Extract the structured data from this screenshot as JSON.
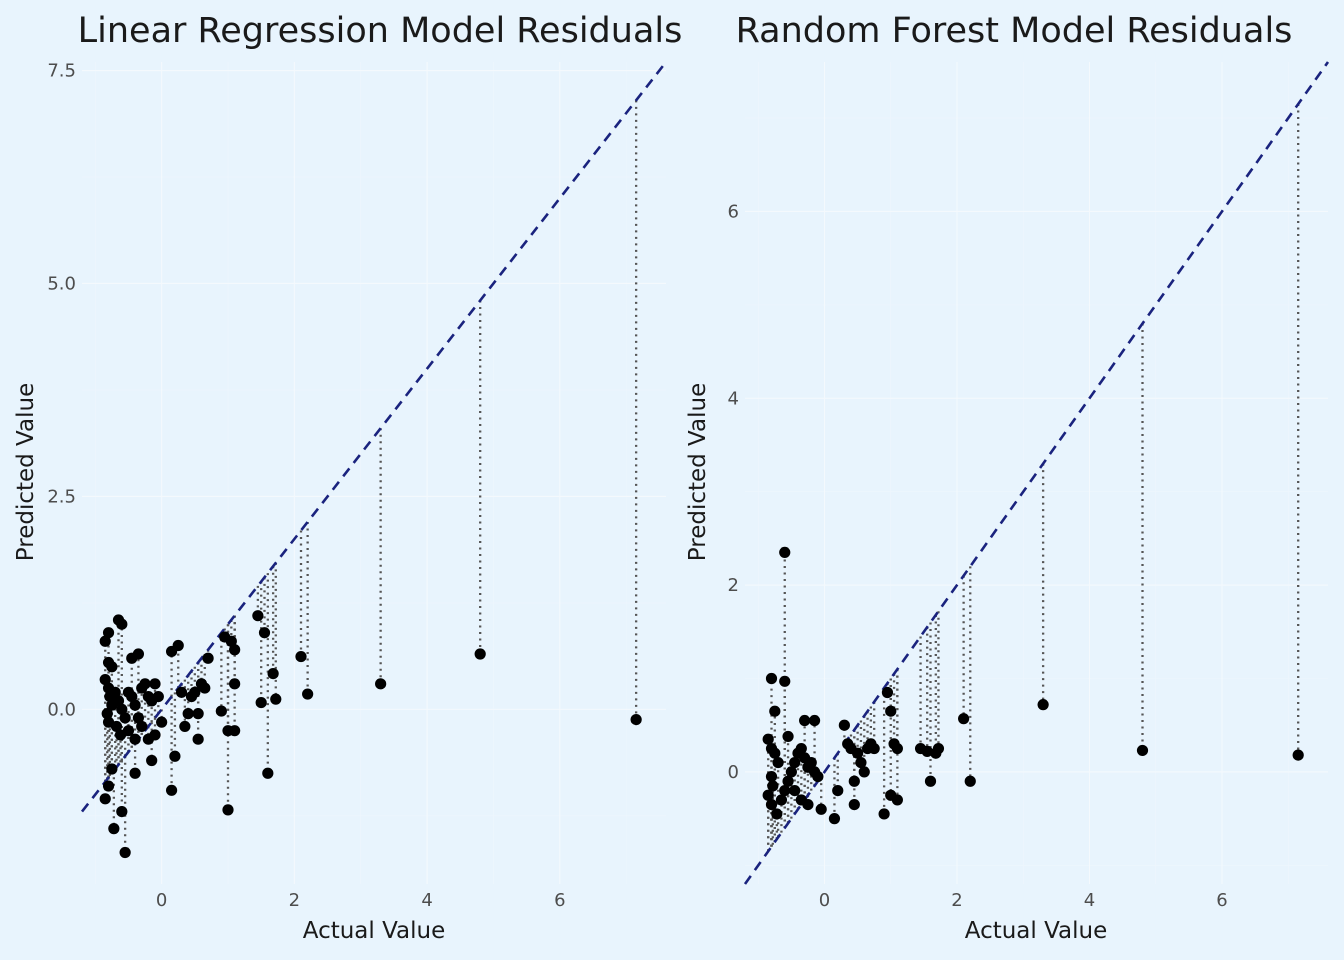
{
  "chart_data": [
    {
      "type": "scatter",
      "title": "Linear Regression Model Residuals",
      "xlabel": "Actual Value",
      "ylabel": "Predicted Value",
      "xlim": [
        -1.2,
        7.6
      ],
      "ylim": [
        -2.05,
        7.6
      ],
      "x_ticks": [
        0,
        2,
        4,
        6
      ],
      "y_ticks": [
        0.0,
        2.5,
        5.0,
        7.5
      ],
      "x_tick_labels": [
        "0",
        "2",
        "4",
        "6"
      ],
      "y_tick_labels": [
        "0.0",
        "2.5",
        "5.0",
        "7.5"
      ],
      "reference_line": "y = x",
      "grid": true,
      "points": [
        [
          -0.85,
          0.8
        ],
        [
          -0.8,
          0.9
        ],
        [
          -0.8,
          0.55
        ],
        [
          -0.75,
          0.5
        ],
        [
          -0.65,
          1.05
        ],
        [
          -0.6,
          1.0
        ],
        [
          -0.85,
          0.35
        ],
        [
          -0.8,
          0.25
        ],
        [
          -0.78,
          0.15
        ],
        [
          -0.75,
          0.05
        ],
        [
          -0.82,
          -0.05
        ],
        [
          -0.8,
          -0.15
        ],
        [
          -0.7,
          0.2
        ],
        [
          -0.65,
          0.1
        ],
        [
          -0.6,
          0.0
        ],
        [
          -0.55,
          -0.1
        ],
        [
          -0.68,
          -0.2
        ],
        [
          -0.62,
          -0.3
        ],
        [
          -0.5,
          0.2
        ],
        [
          -0.45,
          0.15
        ],
        [
          -0.4,
          0.05
        ],
        [
          -0.35,
          -0.1
        ],
        [
          -0.3,
          0.25
        ],
        [
          -0.25,
          0.3
        ],
        [
          -0.2,
          0.15
        ],
        [
          -0.15,
          0.1
        ],
        [
          -0.1,
          0.3
        ],
        [
          -0.05,
          0.15
        ],
        [
          -0.45,
          0.6
        ],
        [
          -0.35,
          0.65
        ],
        [
          -0.5,
          -0.25
        ],
        [
          -0.4,
          -0.35
        ],
        [
          -0.3,
          -0.2
        ],
        [
          -0.2,
          -0.35
        ],
        [
          -0.1,
          -0.3
        ],
        [
          0.0,
          -0.15
        ],
        [
          -0.85,
          -1.05
        ],
        [
          -0.8,
          -0.9
        ],
        [
          -0.75,
          -0.7
        ],
        [
          -0.72,
          -1.4
        ],
        [
          -0.6,
          -1.2
        ],
        [
          -0.55,
          -1.68
        ],
        [
          -0.4,
          -0.75
        ],
        [
          -0.15,
          -0.6
        ],
        [
          0.15,
          -0.95
        ],
        [
          0.2,
          -0.55
        ],
        [
          0.15,
          0.68
        ],
        [
          0.25,
          0.75
        ],
        [
          0.3,
          0.2
        ],
        [
          0.35,
          -0.2
        ],
        [
          0.4,
          -0.05
        ],
        [
          0.45,
          0.15
        ],
        [
          0.5,
          0.2
        ],
        [
          0.55,
          -0.35
        ],
        [
          0.6,
          0.3
        ],
        [
          0.65,
          0.25
        ],
        [
          0.7,
          0.6
        ],
        [
          0.55,
          -0.05
        ],
        [
          0.9,
          -0.02
        ],
        [
          0.95,
          0.85
        ],
        [
          1.05,
          0.8
        ],
        [
          1.1,
          0.7
        ],
        [
          1.0,
          -0.25
        ],
        [
          1.1,
          -0.25
        ],
        [
          1.1,
          0.3
        ],
        [
          1.0,
          -1.18
        ],
        [
          1.45,
          1.1
        ],
        [
          1.5,
          0.08
        ],
        [
          1.55,
          0.9
        ],
        [
          1.6,
          -0.75
        ],
        [
          1.68,
          0.42
        ],
        [
          1.72,
          0.12
        ],
        [
          2.1,
          0.62
        ],
        [
          2.2,
          0.18
        ],
        [
          3.3,
          0.3
        ],
        [
          4.8,
          0.65
        ],
        [
          7.15,
          -0.12
        ]
      ]
    },
    {
      "type": "scatter",
      "title": "Random Forest Model Residuals",
      "xlabel": "Actual Value",
      "ylabel": "Predicted Value",
      "xlim": [
        -1.2,
        7.6
      ],
      "ylim": [
        -1.2,
        7.6
      ],
      "x_ticks": [
        0,
        2,
        4,
        6
      ],
      "y_ticks": [
        0,
        2,
        4,
        6
      ],
      "x_tick_labels": [
        "0",
        "2",
        "4",
        "6"
      ],
      "y_tick_labels": [
        "0",
        "2",
        "4",
        "6"
      ],
      "reference_line": "y = x",
      "grid": true,
      "points": [
        [
          -0.8,
          1.0
        ],
        [
          -0.75,
          0.65
        ],
        [
          -0.6,
          2.35
        ],
        [
          -0.6,
          0.97
        ],
        [
          -0.85,
          0.35
        ],
        [
          -0.8,
          0.25
        ],
        [
          -0.75,
          0.2
        ],
        [
          -0.7,
          0.1
        ],
        [
          -0.8,
          -0.05
        ],
        [
          -0.78,
          -0.15
        ],
        [
          -0.85,
          -0.25
        ],
        [
          -0.8,
          -0.35
        ],
        [
          -0.72,
          -0.45
        ],
        [
          -0.65,
          -0.3
        ],
        [
          -0.6,
          -0.2
        ],
        [
          -0.55,
          -0.1
        ],
        [
          -0.5,
          0.0
        ],
        [
          -0.45,
          0.1
        ],
        [
          -0.4,
          0.2
        ],
        [
          -0.35,
          0.25
        ],
        [
          -0.3,
          0.15
        ],
        [
          -0.25,
          0.05
        ],
        [
          -0.2,
          0.1
        ],
        [
          -0.15,
          0.0
        ],
        [
          -0.1,
          -0.05
        ],
        [
          -0.3,
          0.55
        ],
        [
          -0.15,
          0.55
        ],
        [
          -0.55,
          0.38
        ],
        [
          -0.45,
          -0.2
        ],
        [
          -0.35,
          -0.3
        ],
        [
          -0.25,
          -0.35
        ],
        [
          -0.05,
          -0.4
        ],
        [
          0.15,
          -0.5
        ],
        [
          0.2,
          -0.2
        ],
        [
          0.3,
          0.5
        ],
        [
          0.35,
          0.3
        ],
        [
          0.4,
          0.25
        ],
        [
          0.45,
          -0.1
        ],
        [
          0.45,
          -0.35
        ],
        [
          0.5,
          0.2
        ],
        [
          0.55,
          0.1
        ],
        [
          0.6,
          0.0
        ],
        [
          0.65,
          0.25
        ],
        [
          0.7,
          0.3
        ],
        [
          0.75,
          0.25
        ],
        [
          0.9,
          -0.45
        ],
        [
          0.95,
          0.85
        ],
        [
          1.0,
          0.65
        ],
        [
          1.0,
          -0.25
        ],
        [
          1.05,
          0.3
        ],
        [
          1.1,
          0.25
        ],
        [
          1.1,
          -0.3
        ],
        [
          1.45,
          0.25
        ],
        [
          1.55,
          0.22
        ],
        [
          1.6,
          -0.1
        ],
        [
          1.68,
          0.2
        ],
        [
          1.72,
          0.25
        ],
        [
          2.1,
          0.57
        ],
        [
          2.2,
          -0.1
        ],
        [
          3.3,
          0.72
        ],
        [
          4.8,
          0.23
        ],
        [
          7.15,
          0.18
        ]
      ]
    }
  ]
}
